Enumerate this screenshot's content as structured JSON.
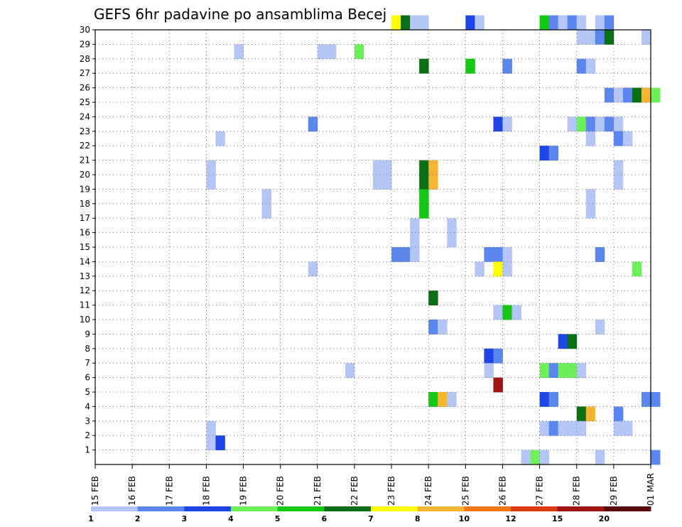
{
  "chart_data": {
    "type": "heatmap",
    "title": "GEFS 6hr padavine po ansamblima Becej",
    "x_tick_labels": [
      "15 FEB",
      "16 FEB",
      "17 FEB",
      "18 FEB",
      "19 FEB",
      "20 FEB",
      "21 FEB",
      "22 FEB",
      "23 FEB",
      "24 FEB",
      "25 FEB",
      "26 FEB",
      "27 FEB",
      "28 FEB",
      "29 FEB",
      "01 MAR"
    ],
    "y_tick_labels": [
      "1",
      "2",
      "3",
      "4",
      "5",
      "6",
      "7",
      "8",
      "9",
      "10",
      "11",
      "12",
      "13",
      "14",
      "15",
      "16",
      "17",
      "18",
      "19",
      "20",
      "21",
      "22",
      "23",
      "24",
      "25",
      "26",
      "27",
      "28",
      "29",
      "30"
    ],
    "xlim_days": [
      0,
      15
    ],
    "ylim_members": [
      0,
      30
    ],
    "timestep_hours": 6,
    "grid": true,
    "colorbar": {
      "labels": [
        "1",
        "2",
        "3",
        "4",
        "5",
        "6",
        "7",
        "8",
        "10",
        "12",
        "15",
        "20"
      ],
      "colors": [
        "#b4c6f5",
        "#5a86ed",
        "#1e46e6",
        "#6ef05a",
        "#14c814",
        "#0a6e14",
        "#ffff00",
        "#f5b432",
        "#f07814",
        "#e03c14",
        "#a01414",
        "#5a0a0a"
      ]
    },
    "cells": [
      {
        "x": "23 FEB 00Z",
        "m": 30,
        "v": 7
      },
      {
        "x": "23 FEB 06Z",
        "m": 30,
        "v": 6
      },
      {
        "x": "23 FEB 12Z",
        "m": 30,
        "v": 1
      },
      {
        "x": "23 FEB 18Z",
        "m": 30,
        "v": 1
      },
      {
        "x": "25 FEB 00Z",
        "m": 30,
        "v": 3
      },
      {
        "x": "25 FEB 06Z",
        "m": 30,
        "v": 1
      },
      {
        "x": "27 FEB 00Z",
        "m": 30,
        "v": 5
      },
      {
        "x": "27 FEB 06Z",
        "m": 30,
        "v": 2
      },
      {
        "x": "27 FEB 12Z",
        "m": 30,
        "v": 1
      },
      {
        "x": "27 FEB 18Z",
        "m": 30,
        "v": 2
      },
      {
        "x": "28 FEB 00Z",
        "m": 30,
        "v": 1
      },
      {
        "x": "28 FEB 12Z",
        "m": 30,
        "v": 1
      },
      {
        "x": "28 FEB 18Z",
        "m": 30,
        "v": 2
      },
      {
        "x": "28 FEB 00Z",
        "m": 29,
        "v": 1
      },
      {
        "x": "28 FEB 06Z",
        "m": 29,
        "v": 1
      },
      {
        "x": "28 FEB 12Z",
        "m": 29,
        "v": 2
      },
      {
        "x": "28 FEB 18Z",
        "m": 29,
        "v": 6
      },
      {
        "x": "29 FEB 18Z",
        "m": 29,
        "v": 1
      },
      {
        "x": "18 FEB 18Z",
        "m": 28,
        "v": 1
      },
      {
        "x": "21 FEB 00Z",
        "m": 28,
        "v": 1
      },
      {
        "x": "21 FEB 06Z",
        "m": 28,
        "v": 1
      },
      {
        "x": "22 FEB 00Z",
        "m": 28,
        "v": 4
      },
      {
        "x": "23 FEB 18Z",
        "m": 27,
        "v": 6
      },
      {
        "x": "25 FEB 00Z",
        "m": 27,
        "v": 5
      },
      {
        "x": "26 FEB 00Z",
        "m": 27,
        "v": 2
      },
      {
        "x": "28 FEB 00Z",
        "m": 27,
        "v": 2
      },
      {
        "x": "28 FEB 06Z",
        "m": 27,
        "v": 1
      },
      {
        "x": "28 FEB 18Z",
        "m": 25,
        "v": 2
      },
      {
        "x": "29 FEB 00Z",
        "m": 25,
        "v": 1
      },
      {
        "x": "29 FEB 06Z",
        "m": 25,
        "v": 2
      },
      {
        "x": "29 FEB 12Z",
        "m": 25,
        "v": 6
      },
      {
        "x": "29 FEB 18Z",
        "m": 25,
        "v": 8
      },
      {
        "x": "01 MAR 00Z",
        "m": 25,
        "v": 4
      },
      {
        "x": "20 FEB 18Z",
        "m": 23,
        "v": 2
      },
      {
        "x": "25 FEB 18Z",
        "m": 23,
        "v": 3
      },
      {
        "x": "26 FEB 00Z",
        "m": 23,
        "v": 1
      },
      {
        "x": "27 FEB 18Z",
        "m": 23,
        "v": 1
      },
      {
        "x": "28 FEB 00Z",
        "m": 23,
        "v": 4
      },
      {
        "x": "28 FEB 06Z",
        "m": 23,
        "v": 2
      },
      {
        "x": "28 FEB 12Z",
        "m": 23,
        "v": 1
      },
      {
        "x": "28 FEB 18Z",
        "m": 23,
        "v": 2
      },
      {
        "x": "29 FEB 00Z",
        "m": 23,
        "v": 1
      },
      {
        "x": "18 FEB 06Z",
        "m": 22,
        "v": 1
      },
      {
        "x": "28 FEB 06Z",
        "m": 22,
        "v": 1
      },
      {
        "x": "29 FEB 00Z",
        "m": 22,
        "v": 2
      },
      {
        "x": "29 FEB 06Z",
        "m": 22,
        "v": 1
      },
      {
        "x": "27 FEB 00Z",
        "m": 21,
        "v": 3
      },
      {
        "x": "27 FEB 06Z",
        "m": 21,
        "v": 2
      },
      {
        "x": "18 FEB 00Z",
        "m": 20,
        "v": 1
      },
      {
        "x": "22 FEB 12Z",
        "m": 20,
        "v": 1
      },
      {
        "x": "22 FEB 18Z",
        "m": 20,
        "v": 1
      },
      {
        "x": "23 FEB 18Z",
        "m": 20,
        "v": 6
      },
      {
        "x": "24 FEB 00Z",
        "m": 20,
        "v": 8
      },
      {
        "x": "29 FEB 00Z",
        "m": 20,
        "v": 1
      },
      {
        "x": "18 FEB 00Z",
        "m": 19,
        "v": 1
      },
      {
        "x": "22 FEB 12Z",
        "m": 19,
        "v": 1
      },
      {
        "x": "22 FEB 18Z",
        "m": 19,
        "v": 1
      },
      {
        "x": "23 FEB 18Z",
        "m": 19,
        "v": 6
      },
      {
        "x": "24 FEB 00Z",
        "m": 19,
        "v": 8
      },
      {
        "x": "29 FEB 00Z",
        "m": 19,
        "v": 1
      },
      {
        "x": "19 FEB 12Z",
        "m": 18,
        "v": 1
      },
      {
        "x": "23 FEB 18Z",
        "m": 18,
        "v": 5
      },
      {
        "x": "28 FEB 06Z",
        "m": 18,
        "v": 1
      },
      {
        "x": "19 FEB 12Z",
        "m": 17,
        "v": 1
      },
      {
        "x": "23 FEB 18Z",
        "m": 17,
        "v": 5
      },
      {
        "x": "28 FEB 06Z",
        "m": 17,
        "v": 1
      },
      {
        "x": "23 FEB 12Z",
        "m": 16,
        "v": 1
      },
      {
        "x": "24 FEB 12Z",
        "m": 16,
        "v": 1
      },
      {
        "x": "23 FEB 12Z",
        "m": 15,
        "v": 1
      },
      {
        "x": "24 FEB 12Z",
        "m": 15,
        "v": 1
      },
      {
        "x": "23 FEB 00Z",
        "m": 14,
        "v": 2
      },
      {
        "x": "23 FEB 06Z",
        "m": 14,
        "v": 2
      },
      {
        "x": "23 FEB 12Z",
        "m": 14,
        "v": 1
      },
      {
        "x": "25 FEB 12Z",
        "m": 14,
        "v": 2
      },
      {
        "x": "25 FEB 18Z",
        "m": 14,
        "v": 2
      },
      {
        "x": "26 FEB 00Z",
        "m": 14,
        "v": 1
      },
      {
        "x": "28 FEB 12Z",
        "m": 14,
        "v": 2
      },
      {
        "x": "20 FEB 18Z",
        "m": 13,
        "v": 1
      },
      {
        "x": "25 FEB 06Z",
        "m": 13,
        "v": 1
      },
      {
        "x": "25 FEB 18Z",
        "m": 13,
        "v": 7
      },
      {
        "x": "26 FEB 00Z",
        "m": 13,
        "v": 1
      },
      {
        "x": "29 FEB 12Z",
        "m": 13,
        "v": 4
      },
      {
        "x": "24 FEB 00Z",
        "m": 11,
        "v": 6
      },
      {
        "x": "25 FEB 18Z",
        "m": 10,
        "v": 1
      },
      {
        "x": "26 FEB 00Z",
        "m": 10,
        "v": 5
      },
      {
        "x": "26 FEB 06Z",
        "m": 10,
        "v": 1
      },
      {
        "x": "24 FEB 00Z",
        "m": 9,
        "v": 2
      },
      {
        "x": "24 FEB 06Z",
        "m": 9,
        "v": 1
      },
      {
        "x": "28 FEB 12Z",
        "m": 9,
        "v": 1
      },
      {
        "x": "27 FEB 12Z",
        "m": 8,
        "v": 3
      },
      {
        "x": "27 FEB 18Z",
        "m": 8,
        "v": 6
      },
      {
        "x": "25 FEB 12Z",
        "m": 7,
        "v": 3
      },
      {
        "x": "25 FEB 18Z",
        "m": 7,
        "v": 2
      },
      {
        "x": "21 FEB 18Z",
        "m": 6,
        "v": 1
      },
      {
        "x": "25 FEB 12Z",
        "m": 6,
        "v": 1
      },
      {
        "x": "27 FEB 00Z",
        "m": 6,
        "v": 4
      },
      {
        "x": "27 FEB 06Z",
        "m": 6,
        "v": 2
      },
      {
        "x": "27 FEB 12Z",
        "m": 6,
        "v": 4
      },
      {
        "x": "27 FEB 18Z",
        "m": 6,
        "v": 4
      },
      {
        "x": "28 FEB 00Z",
        "m": 6,
        "v": 1
      },
      {
        "x": "25 FEB 18Z",
        "m": 5,
        "v": 15
      },
      {
        "x": "24 FEB 00Z",
        "m": 4,
        "v": 5
      },
      {
        "x": "24 FEB 06Z",
        "m": 4,
        "v": 8
      },
      {
        "x": "24 FEB 12Z",
        "m": 4,
        "v": 1
      },
      {
        "x": "27 FEB 00Z",
        "m": 4,
        "v": 3
      },
      {
        "x": "27 FEB 06Z",
        "m": 4,
        "v": 2
      },
      {
        "x": "29 FEB 18Z",
        "m": 4,
        "v": 2
      },
      {
        "x": "01 MAR 00Z",
        "m": 4,
        "v": 2
      },
      {
        "x": "28 FEB 00Z",
        "m": 3,
        "v": 6
      },
      {
        "x": "28 FEB 06Z",
        "m": 3,
        "v": 8
      },
      {
        "x": "29 FEB 00Z",
        "m": 3,
        "v": 2
      },
      {
        "x": "18 FEB 00Z",
        "m": 2,
        "v": 1
      },
      {
        "x": "27 FEB 00Z",
        "m": 2,
        "v": 1
      },
      {
        "x": "27 FEB 06Z",
        "m": 2,
        "v": 2
      },
      {
        "x": "27 FEB 12Z",
        "m": 2,
        "v": 1
      },
      {
        "x": "27 FEB 18Z",
        "m": 2,
        "v": 1
      },
      {
        "x": "28 FEB 00Z",
        "m": 2,
        "v": 1
      },
      {
        "x": "29 FEB 00Z",
        "m": 2,
        "v": 1
      },
      {
        "x": "29 FEB 06Z",
        "m": 2,
        "v": 1
      },
      {
        "x": "18 FEB 00Z",
        "m": 1,
        "v": 1
      },
      {
        "x": "18 FEB 06Z",
        "m": 1,
        "v": 3
      },
      {
        "x": "26 FEB 12Z",
        "m": 0,
        "v": 1
      },
      {
        "x": "26 FEB 18Z",
        "m": 0,
        "v": 4
      },
      {
        "x": "27 FEB 00Z",
        "m": 0,
        "v": 1
      },
      {
        "x": "28 FEB 12Z",
        "m": 0,
        "v": 1
      },
      {
        "x": "01 MAR 00Z",
        "m": 0,
        "v": 2
      }
    ]
  }
}
